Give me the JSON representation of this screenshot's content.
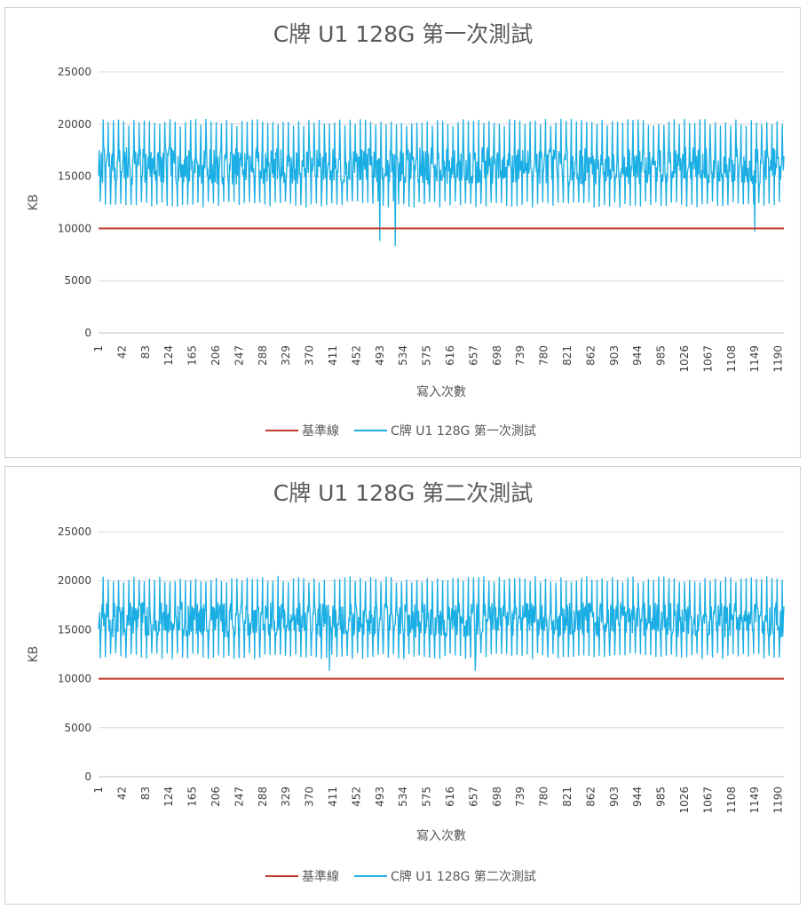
{
  "chart_data": [
    {
      "type": "line",
      "title": "C牌 U1 128G 第一次測試",
      "xlabel": "寫入次數",
      "ylabel": "KB",
      "ylim": [
        0,
        25000
      ],
      "yticks": [
        "0",
        "5000",
        "10000",
        "15000",
        "20000",
        "25000"
      ],
      "xticks": [
        "1",
        "42",
        "83",
        "124",
        "165",
        "206",
        "247",
        "288",
        "329",
        "370",
        "411",
        "452",
        "493",
        "534",
        "575",
        "616",
        "657",
        "698",
        "739",
        "780",
        "821",
        "862",
        "903",
        "944",
        "985",
        "1026",
        "1067",
        "1108",
        "1149",
        "1190"
      ],
      "x_range": [
        1,
        1200
      ],
      "grid": true,
      "legend_position": "bottom",
      "baseline": {
        "name": "基準線",
        "value": 10000,
        "color": "#c0392b"
      },
      "series": [
        {
          "name": "C牌 U1 128G 第一次測試",
          "color": "#1aaee4",
          "typical_range": [
            12000,
            20500
          ],
          "center": 16000,
          "min_dips": [
            {
              "x": 493,
              "y": 8800
            },
            {
              "x": 520,
              "y": 8300
            },
            {
              "x": 1149,
              "y": 9700
            }
          ]
        }
      ]
    },
    {
      "type": "line",
      "title": "C牌 U1 128G 第二次測試",
      "xlabel": "寫入次數",
      "ylabel": "KB",
      "ylim": [
        0,
        25000
      ],
      "yticks": [
        "0",
        "5000",
        "10000",
        "15000",
        "20000",
        "25000"
      ],
      "xticks": [
        "1",
        "42",
        "83",
        "124",
        "165",
        "206",
        "247",
        "288",
        "329",
        "370",
        "411",
        "452",
        "493",
        "534",
        "575",
        "616",
        "657",
        "698",
        "739",
        "780",
        "821",
        "862",
        "903",
        "944",
        "985",
        "1026",
        "1067",
        "1108",
        "1149",
        "1190"
      ],
      "x_range": [
        1,
        1200
      ],
      "grid": true,
      "legend_position": "bottom",
      "baseline": {
        "name": "基準線",
        "value": 10000,
        "color": "#c0392b"
      },
      "series": [
        {
          "name": "C牌 U1 128G 第二次測試",
          "color": "#1aaee4",
          "typical_range": [
            12000,
            20500
          ],
          "center": 16000,
          "min_dips": [
            {
              "x": 405,
              "y": 10800
            },
            {
              "x": 660,
              "y": 10800
            }
          ]
        }
      ]
    }
  ]
}
